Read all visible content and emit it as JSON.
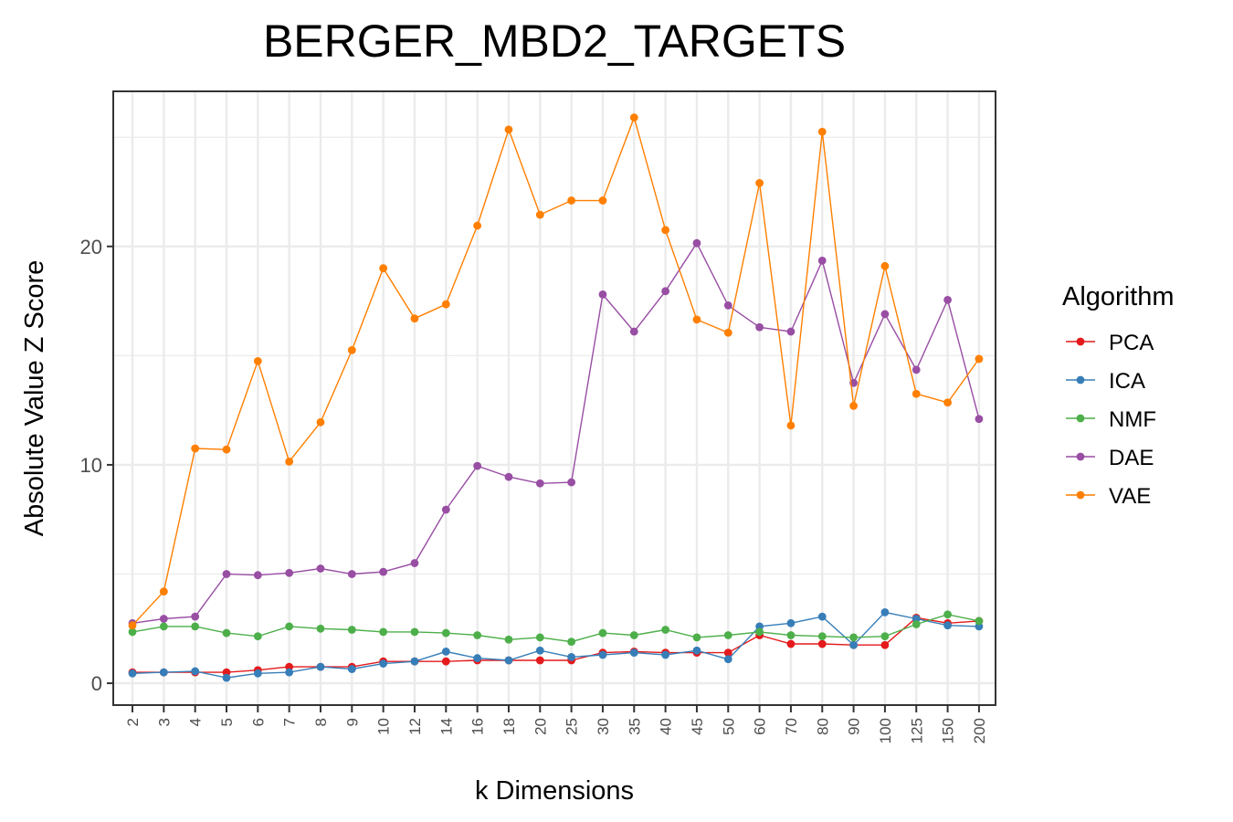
{
  "chart_data": {
    "type": "line",
    "title": "BERGER_MBD2_TARGETS",
    "xlabel": "k Dimensions",
    "ylabel": "Absolute Value Z Score",
    "categories": [
      "2",
      "3",
      "4",
      "5",
      "6",
      "7",
      "8",
      "9",
      "10",
      "12",
      "14",
      "16",
      "18",
      "20",
      "25",
      "30",
      "35",
      "40",
      "45",
      "50",
      "60",
      "70",
      "80",
      "90",
      "100",
      "125",
      "150",
      "200"
    ],
    "ylim": [
      -1,
      27.1
    ],
    "yticks": [
      0,
      10,
      20
    ],
    "grid": true,
    "legend": {
      "title": "Algorithm",
      "position": "right"
    },
    "series": [
      {
        "name": "PCA",
        "color": "#E41A1C",
        "values": [
          0.5,
          0.5,
          0.5,
          0.5,
          0.6,
          0.75,
          0.75,
          0.75,
          1.0,
          1.0,
          1.0,
          1.05,
          1.05,
          1.05,
          1.05,
          1.4,
          1.45,
          1.4,
          1.4,
          1.4,
          2.2,
          1.8,
          1.8,
          1.75,
          1.75,
          3.0,
          2.75,
          2.85
        ]
      },
      {
        "name": "ICA",
        "color": "#377EB8",
        "values": [
          0.45,
          0.5,
          0.55,
          0.25,
          0.45,
          0.5,
          0.75,
          0.65,
          0.9,
          1.0,
          1.45,
          1.15,
          1.05,
          1.5,
          1.2,
          1.3,
          1.4,
          1.3,
          1.5,
          1.1,
          2.6,
          2.75,
          3.05,
          1.75,
          3.25,
          2.95,
          2.65,
          2.6
        ]
      },
      {
        "name": "NMF",
        "color": "#4DAF4A",
        "values": [
          2.35,
          2.6,
          2.6,
          2.3,
          2.15,
          2.6,
          2.5,
          2.45,
          2.35,
          2.35,
          2.3,
          2.2,
          2.0,
          2.1,
          1.9,
          2.3,
          2.2,
          2.45,
          2.1,
          2.2,
          2.35,
          2.2,
          2.15,
          2.1,
          2.15,
          2.7,
          3.15,
          2.85
        ]
      },
      {
        "name": "DAE",
        "color": "#984EA3",
        "values": [
          2.75,
          2.95,
          3.05,
          5.0,
          4.95,
          5.05,
          5.25,
          5.0,
          5.1,
          5.5,
          7.95,
          9.95,
          9.45,
          9.15,
          9.2,
          17.8,
          16.1,
          17.95,
          20.15,
          17.3,
          16.3,
          16.1,
          19.35,
          13.75,
          16.9,
          14.35,
          17.55,
          12.1
        ]
      },
      {
        "name": "VAE",
        "color": "#FF7F00",
        "values": [
          2.65,
          4.2,
          10.75,
          10.7,
          14.75,
          10.15,
          11.95,
          15.25,
          19.0,
          16.7,
          17.35,
          20.95,
          25.35,
          21.45,
          22.1,
          22.1,
          25.9,
          20.75,
          16.65,
          16.05,
          22.9,
          11.8,
          25.25,
          12.7,
          19.1,
          13.25,
          12.85,
          14.85
        ]
      }
    ]
  }
}
